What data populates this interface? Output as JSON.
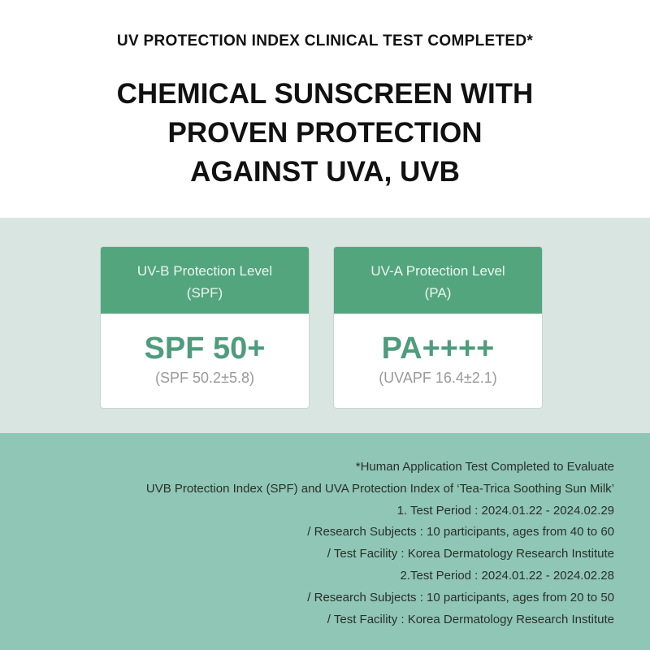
{
  "header": {
    "subtitle": "UV PROTECTION INDEX CLINICAL TEST COMPLETED*",
    "title_lines": [
      "CHEMICAL SUNSCREEN WITH",
      "PROVEN PROTECTION",
      "AGAINST UVA, UVB"
    ]
  },
  "cards": [
    {
      "header_lines": [
        "UV-B Protection Level",
        "(SPF)"
      ],
      "value": "SPF 50+",
      "detail": "(SPF 50.2±5.8)"
    },
    {
      "header_lines": [
        "UV-A Protection Level",
        "(PA)"
      ],
      "value": "PA++++",
      "detail": "(UVAPF 16.4±2.1)"
    }
  ],
  "footnote": [
    "*Human Application Test Completed to Evaluate",
    "UVB Protection Index (SPF) and UVA Protection Index of ‘Tea-Trica Soothing Sun Milk’",
    "1. Test Period : 2024.01.22 - 2024.02.29",
    "/ Research Subjects : 10 participants, ages from 40 to 60",
    "/ Test Facility : Korea Dermatology Research Institute",
    "2.Test Period : 2024.01.22 - 2024.02.28",
    "/ Research Subjects : 10 participants, ages from 20 to 50",
    "/ Test Facility : Korea Dermatology Research Institute"
  ],
  "colors": {
    "accent": "#53a57d",
    "band": "#d9e5e1",
    "footer": "#8fc6b5"
  }
}
